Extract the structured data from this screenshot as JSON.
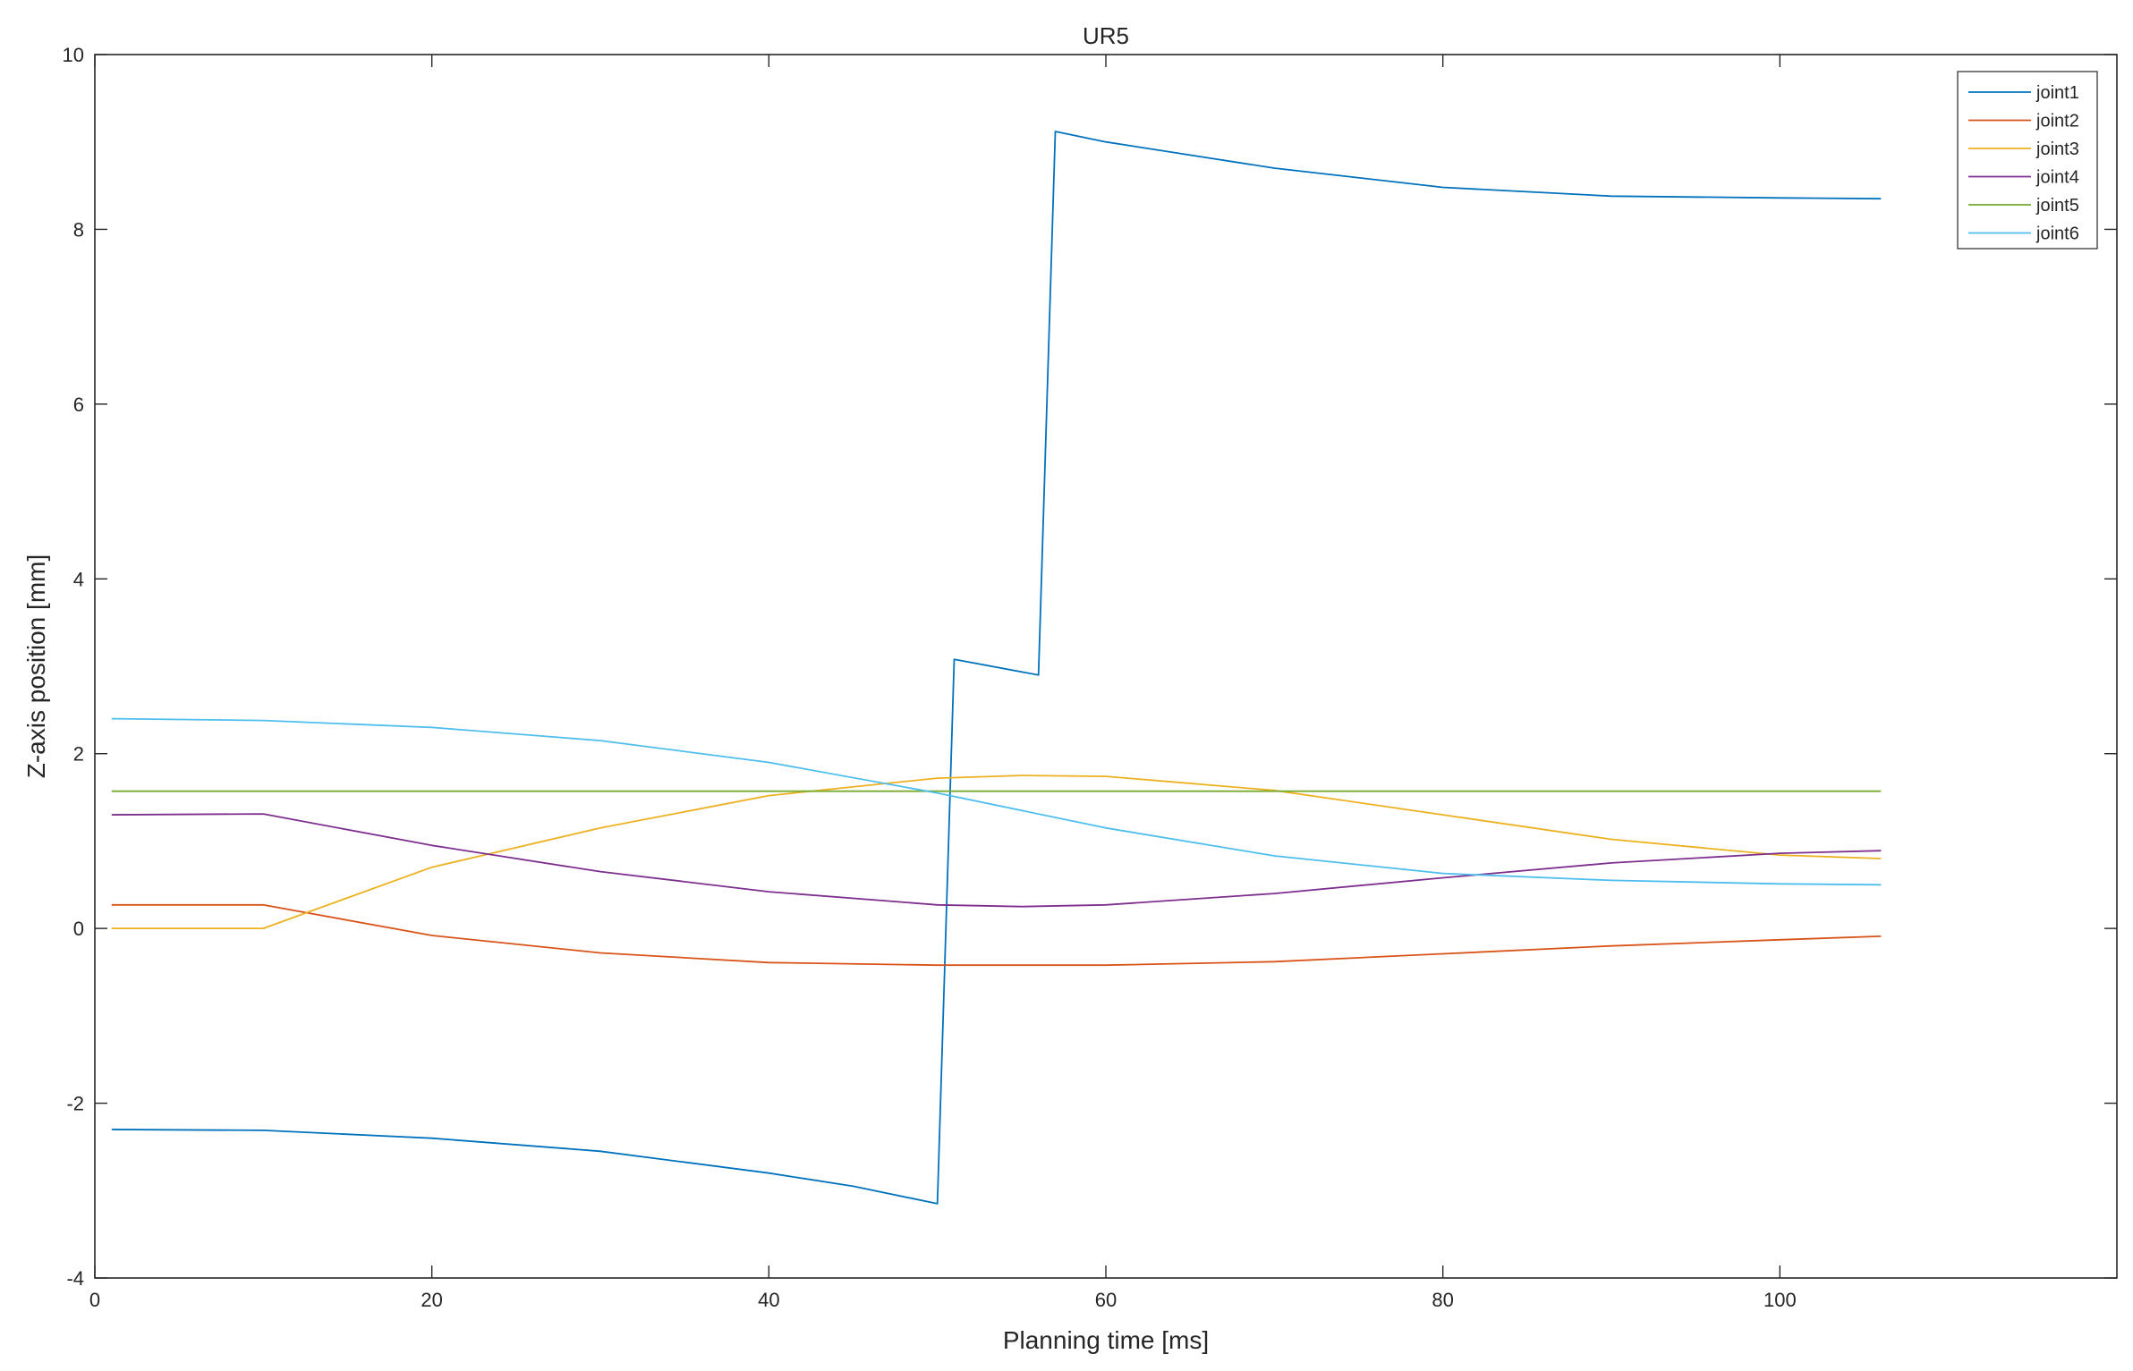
{
  "chart_data": {
    "type": "line",
    "title": "UR5",
    "xlabel": "Planning time [ms]",
    "ylabel": "Z-axis position  [mm]",
    "xlim": [
      0,
      120
    ],
    "ylim": [
      -4,
      10
    ],
    "xticks": [
      0,
      20,
      40,
      60,
      80,
      100
    ],
    "yticks": [
      -4,
      -2,
      0,
      2,
      4,
      6,
      8,
      10
    ],
    "grid": false,
    "legend": "top-right",
    "series": [
      {
        "name": "joint1",
        "color": "#0072BD",
        "x": [
          1,
          10,
          20,
          30,
          40,
          45,
          50,
          51,
          56,
          57,
          60,
          70,
          80,
          90,
          100,
          106
        ],
        "y": [
          -2.3,
          -2.31,
          -2.4,
          -2.55,
          -2.8,
          -2.95,
          -3.15,
          3.08,
          2.9,
          9.12,
          9.0,
          8.7,
          8.48,
          8.38,
          8.36,
          8.35
        ]
      },
      {
        "name": "joint2",
        "color": "#D95319",
        "x": [
          1,
          10,
          20,
          30,
          40,
          50,
          60,
          70,
          80,
          90,
          100,
          106
        ],
        "y": [
          0.27,
          0.27,
          -0.08,
          -0.28,
          -0.39,
          -0.42,
          -0.42,
          -0.38,
          -0.29,
          -0.2,
          -0.13,
          -0.09
        ]
      },
      {
        "name": "joint3",
        "color": "#EDB120",
        "x": [
          1,
          10,
          20,
          30,
          40,
          50,
          55,
          60,
          70,
          80,
          90,
          100,
          106
        ],
        "y": [
          0.0,
          0.0,
          0.7,
          1.15,
          1.52,
          1.72,
          1.75,
          1.74,
          1.58,
          1.3,
          1.02,
          0.84,
          0.8
        ]
      },
      {
        "name": "joint4",
        "color": "#7E2F8E",
        "x": [
          1,
          10,
          20,
          30,
          40,
          50,
          55,
          60,
          70,
          80,
          90,
          100,
          106
        ],
        "y": [
          1.3,
          1.31,
          0.95,
          0.65,
          0.42,
          0.27,
          0.25,
          0.27,
          0.4,
          0.58,
          0.75,
          0.86,
          0.89
        ]
      },
      {
        "name": "joint5",
        "color": "#77AC30",
        "x": [
          1,
          106
        ],
        "y": [
          1.57,
          1.57
        ]
      },
      {
        "name": "joint6",
        "color": "#4DBEEE",
        "x": [
          1,
          10,
          20,
          30,
          40,
          50,
          60,
          70,
          80,
          90,
          100,
          106
        ],
        "y": [
          2.4,
          2.38,
          2.3,
          2.15,
          1.9,
          1.55,
          1.15,
          0.83,
          0.63,
          0.55,
          0.51,
          0.5
        ]
      }
    ]
  }
}
